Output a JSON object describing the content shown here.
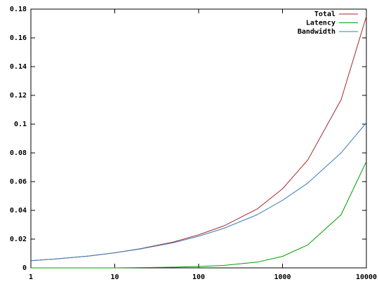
{
  "chart_data": {
    "type": "line",
    "xscale": "log",
    "legend": "upper right",
    "x": [
      1,
      2,
      5,
      10,
      20,
      50,
      100,
      200,
      500,
      1000,
      2000,
      5000,
      10000
    ],
    "series": [
      {
        "name": "Total",
        "color": "#a52a2a",
        "values": [
          0.005,
          0.0062,
          0.0083,
          0.0105,
          0.0133,
          0.018,
          0.023,
          0.0292,
          0.041,
          0.055,
          0.075,
          0.117,
          0.175
        ]
      },
      {
        "name": "Latency",
        "color": "#009e00",
        "values": [
          0,
          0,
          0,
          0,
          0.0002,
          0.0005,
          0.001,
          0.0017,
          0.004,
          0.008,
          0.016,
          0.037,
          0.074
        ]
      },
      {
        "name": "Bandwidth",
        "color": "#3a7cc0",
        "values": [
          0.005,
          0.0062,
          0.0083,
          0.0105,
          0.0131,
          0.0175,
          0.022,
          0.0275,
          0.037,
          0.047,
          0.059,
          0.08,
          0.101
        ]
      }
    ],
    "xlim": [
      1,
      10000
    ],
    "xticks": [
      1,
      10,
      100,
      1000,
      10000
    ],
    "ylim": [
      0,
      0.18
    ],
    "yticks": [
      0,
      0.02,
      0.04,
      0.06,
      0.08,
      0.1,
      0.12,
      0.14,
      0.16,
      0.18
    ]
  }
}
